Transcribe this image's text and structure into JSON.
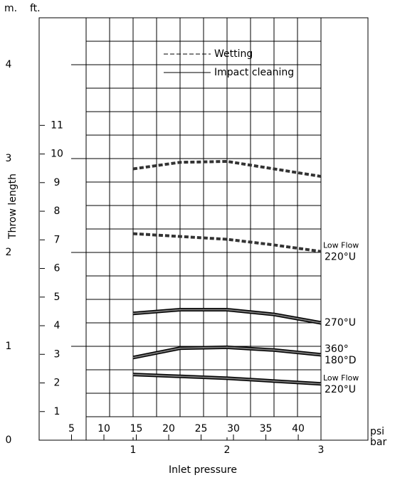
{
  "chart_data": {
    "type": "line",
    "y_unit": "m.",
    "y2_unit": "ft.",
    "y_label": "Throw length",
    "x_label": "Inlet pressure",
    "x_unit": "bar",
    "x2_unit": "psi",
    "x": [
      1,
      1.5,
      2,
      2.5,
      3
    ],
    "xlim": [
      0,
      3.5
    ],
    "xticks": [
      1,
      2,
      3
    ],
    "x2lim": [
      0,
      50.76
    ],
    "x2ticks": [
      5,
      10,
      15,
      20,
      25,
      30,
      35,
      40
    ],
    "ylim": [
      0,
      4.5
    ],
    "yticks": [
      0,
      1,
      2,
      3,
      4
    ],
    "y2lim": [
      0,
      14.76
    ],
    "y2ticks": [
      1,
      2,
      3,
      4,
      5,
      6,
      7,
      8,
      9,
      10,
      11
    ],
    "grid": {
      "x": 0.25,
      "y": 0.25
    },
    "legend": [
      {
        "name": "Wetting",
        "style": "dashed"
      },
      {
        "name": "Impact cleaning",
        "style": "solid"
      }
    ],
    "series": [
      {
        "style": "dashed",
        "values": [
          2.89,
          2.96,
          2.97,
          2.89,
          2.81
        ]
      },
      {
        "style": "dashed",
        "labels": [
          "Low Flow",
          "220°U"
        ],
        "values": [
          2.2,
          2.17,
          2.14,
          2.08,
          2.01
        ]
      },
      {
        "style": "solid",
        "labels": [
          "270°U"
        ],
        "values": [
          1.35,
          1.39,
          1.39,
          1.34,
          1.25
        ]
      },
      {
        "style": "solid",
        "labels": [
          "360°",
          "180°D"
        ],
        "values": [
          0.88,
          0.98,
          0.99,
          0.96,
          0.91
        ]
      },
      {
        "style": "solid",
        "labels": [
          "Low Flow",
          "220°U"
        ],
        "values": [
          0.7,
          0.68,
          0.66,
          0.63,
          0.6
        ]
      }
    ]
  }
}
